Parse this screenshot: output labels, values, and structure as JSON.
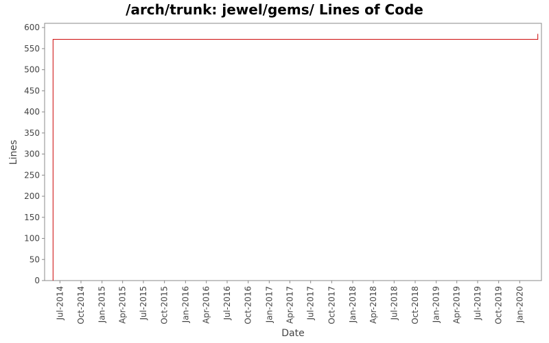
{
  "chart_data": {
    "type": "line",
    "title": "/arch/trunk: jewel/gems/ Lines of Code",
    "xlabel": "Date",
    "ylabel": "Lines",
    "ylim": [
      0,
      610
    ],
    "xlim": [
      "2014-04-25",
      "2020-04-05"
    ],
    "yticks": [
      0,
      50,
      100,
      150,
      200,
      250,
      300,
      350,
      400,
      450,
      500,
      550,
      600
    ],
    "xticks": [
      {
        "date": "2014-07-01",
        "label": "Jul-2014"
      },
      {
        "date": "2014-10-01",
        "label": "Oct-2014"
      },
      {
        "date": "2015-01-01",
        "label": "Jan-2015"
      },
      {
        "date": "2015-04-01",
        "label": "Apr-2015"
      },
      {
        "date": "2015-07-01",
        "label": "Jul-2015"
      },
      {
        "date": "2015-10-01",
        "label": "Oct-2015"
      },
      {
        "date": "2016-01-01",
        "label": "Jan-2016"
      },
      {
        "date": "2016-04-01",
        "label": "Apr-2016"
      },
      {
        "date": "2016-07-01",
        "label": "Jul-2016"
      },
      {
        "date": "2016-10-01",
        "label": "Oct-2016"
      },
      {
        "date": "2017-01-01",
        "label": "Jan-2017"
      },
      {
        "date": "2017-04-01",
        "label": "Apr-2017"
      },
      {
        "date": "2017-07-01",
        "label": "Jul-2017"
      },
      {
        "date": "2017-10-01",
        "label": "Oct-2017"
      },
      {
        "date": "2018-01-01",
        "label": "Jan-2018"
      },
      {
        "date": "2018-04-01",
        "label": "Apr-2018"
      },
      {
        "date": "2018-07-01",
        "label": "Jul-2018"
      },
      {
        "date": "2018-10-01",
        "label": "Oct-2018"
      },
      {
        "date": "2019-01-01",
        "label": "Jan-2019"
      },
      {
        "date": "2019-04-01",
        "label": "Apr-2019"
      },
      {
        "date": "2019-07-01",
        "label": "Jul-2019"
      },
      {
        "date": "2019-10-01",
        "label": "Oct-2019"
      },
      {
        "date": "2020-01-01",
        "label": "Jan-2020"
      }
    ],
    "series": [
      {
        "color": "#cc0000",
        "step": true,
        "points": [
          {
            "x": "2014-06-01",
            "y": 0
          },
          {
            "x": "2014-06-01",
            "y": 572
          },
          {
            "x": "2020-03-20",
            "y": 572
          },
          {
            "x": "2020-03-20",
            "y": 585
          }
        ]
      }
    ],
    "grid": false,
    "legend": "none"
  }
}
